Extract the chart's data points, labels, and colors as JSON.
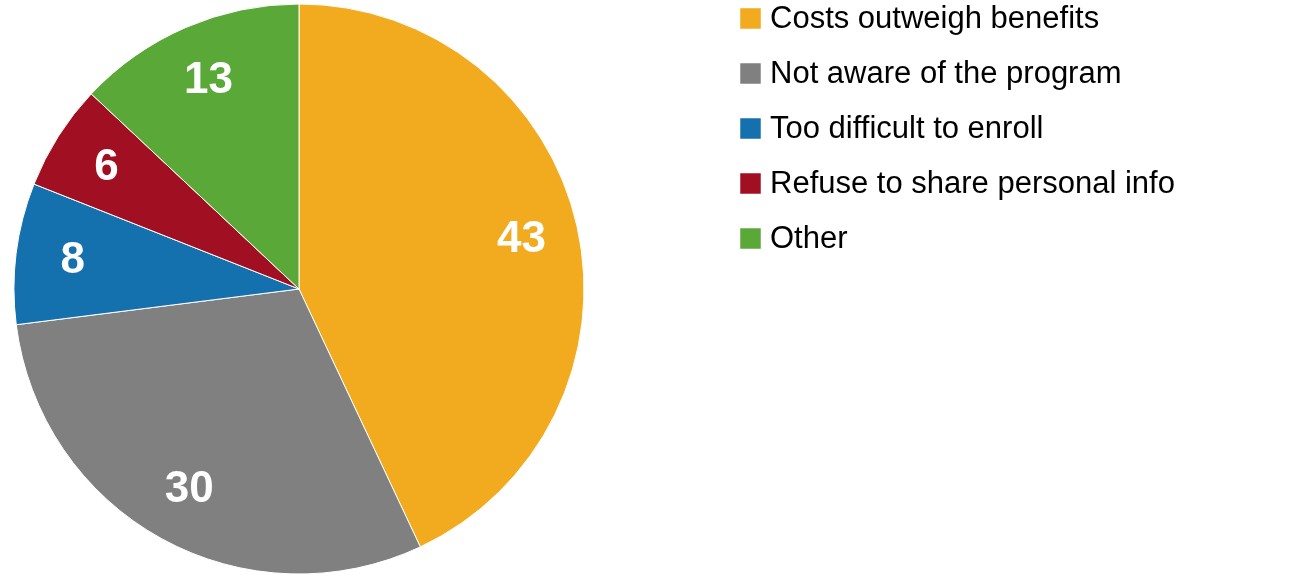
{
  "chart_data": {
    "type": "pie",
    "categories": [
      "Costs outweigh benefits",
      "Not aware of the program",
      "Too difficult to enroll",
      "Refuse to share personal info",
      "Other"
    ],
    "values": [
      43,
      30,
      8,
      6,
      13
    ],
    "colors": [
      "#f2aa1f",
      "#808080",
      "#1571ad",
      "#a10f22",
      "#5aa838"
    ],
    "data_labels": true,
    "legend": "right"
  }
}
